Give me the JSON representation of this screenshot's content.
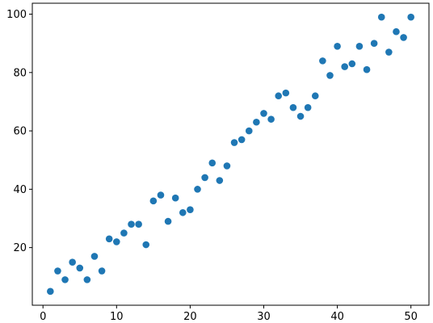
{
  "chart_data": {
    "type": "scatter",
    "title": "",
    "xlabel": "",
    "ylabel": "",
    "xlim": [
      -1.45,
      52.45
    ],
    "ylim": [
      0.25,
      103.75
    ],
    "xticks": [
      0,
      10,
      20,
      30,
      40,
      50
    ],
    "yticks": [
      20,
      40,
      60,
      80,
      100
    ],
    "grid": false,
    "marker_color": "#1f77b4",
    "x": [
      1,
      2,
      3,
      4,
      5,
      6,
      7,
      8,
      9,
      10,
      11,
      12,
      13,
      14,
      15,
      16,
      17,
      18,
      19,
      20,
      21,
      22,
      23,
      24,
      25,
      26,
      27,
      28,
      29,
      30,
      31,
      32,
      33,
      34,
      35,
      36,
      37,
      38,
      39,
      40,
      41,
      42,
      43,
      44,
      45,
      46,
      47,
      48,
      49,
      50
    ],
    "y": [
      5,
      12,
      9,
      15,
      13,
      9,
      17,
      12,
      23,
      22,
      25,
      28,
      28,
      21,
      36,
      38,
      29,
      37,
      32,
      33,
      40,
      44,
      49,
      43,
      48,
      56,
      57,
      60,
      63,
      66,
      64,
      72,
      73,
      68,
      65,
      68,
      72,
      84,
      79,
      89,
      82,
      83,
      89,
      81,
      90,
      99,
      87,
      94,
      92,
      99
    ]
  }
}
